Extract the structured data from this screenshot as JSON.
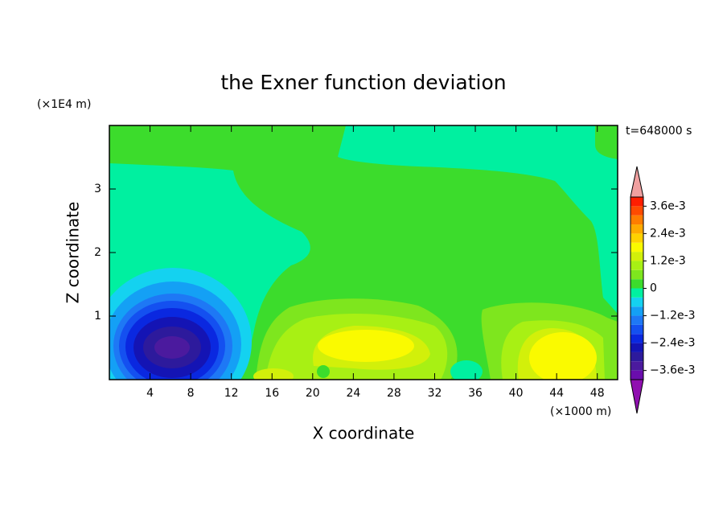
{
  "chart_data": {
    "type": "contour",
    "title": "the Exner function deviation",
    "xlabel": "X coordinate",
    "ylabel": "Z coordinate",
    "xunit": "(×1000 m)",
    "yunit": "(×1E4 m)",
    "annotation": "t=648000 s",
    "xlim": [
      0,
      50
    ],
    "ylim": [
      0,
      4
    ],
    "xticks": [
      4,
      8,
      12,
      16,
      20,
      24,
      28,
      32,
      36,
      40,
      44,
      48
    ],
    "yticks": [
      1,
      2,
      3
    ],
    "colorbar": {
      "lim": [
        -0.004,
        0.004
      ],
      "ticks": [
        {
          "value": 0.0036,
          "label": "3.6e-3"
        },
        {
          "value": 0.0024,
          "label": "2.4e-3"
        },
        {
          "value": 0.0012,
          "label": "1.2e-3"
        },
        0,
        {
          "value": -0.0012,
          "label": "−1.2e-3"
        },
        {
          "value": -0.0024,
          "label": "−2.4e-3"
        },
        {
          "value": -0.0036,
          "label": "−3.6e-3"
        }
      ],
      "colors": [
        "#6a0dad",
        "#4b1a9e",
        "#2d1a9c",
        "#1414b4",
        "#0a28e0",
        "#1450f0",
        "#1e78f5",
        "#14a0f5",
        "#14d2f0",
        "#00f0a0",
        "#3cdc2c",
        "#7ee61e",
        "#a8f014",
        "#d2f00a",
        "#fafa00",
        "#ffd200",
        "#ffaa00",
        "#ff7d00",
        "#ff4b00",
        "#ff1e00"
      ],
      "under_color": "#9010b0",
      "over_color": "#f0a0a0"
    }
  }
}
